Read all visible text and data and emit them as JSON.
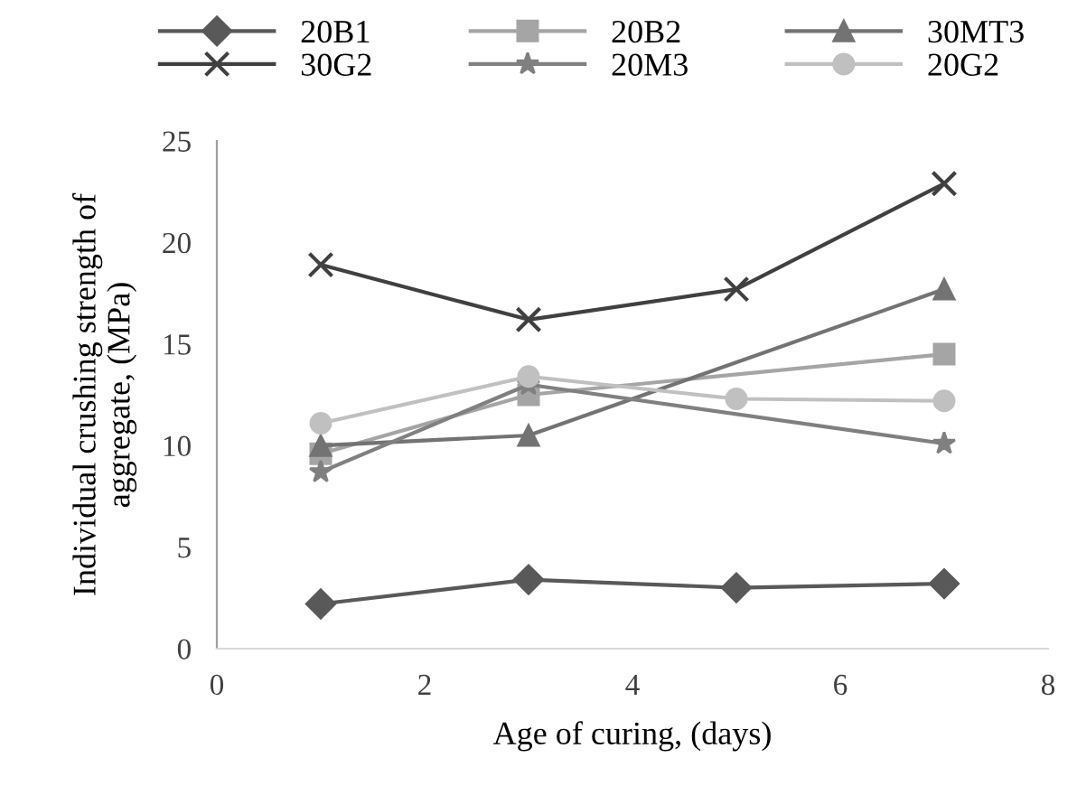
{
  "chart_data": {
    "type": "line",
    "xlabel": "Age of curing, (days)",
    "ylabel": "Individual crushing strength of\naggregate, (MPa)",
    "xlim": [
      0,
      8
    ],
    "xticks": [
      0,
      2,
      4,
      6,
      8
    ],
    "ylim": [
      0,
      25
    ],
    "yticks": [
      0,
      5,
      10,
      15,
      20,
      25
    ],
    "grid": false,
    "legend": "top",
    "series": [
      {
        "name": "20B1",
        "color": "#595959",
        "marker": "diamond",
        "x": [
          1,
          3,
          5,
          7
        ],
        "values": [
          2.2,
          3.4,
          3.0,
          3.2
        ]
      },
      {
        "name": "20B2",
        "color": "#a5a5a5",
        "marker": "square",
        "x": [
          1,
          3,
          7
        ],
        "values": [
          9.6,
          12.5,
          14.5
        ]
      },
      {
        "name": "30MT3",
        "color": "#737373",
        "marker": "triangle",
        "x": [
          1,
          3,
          7
        ],
        "values": [
          10.0,
          10.5,
          17.7
        ]
      },
      {
        "name": "30G2",
        "color": "#404040",
        "marker": "cross",
        "x": [
          1,
          3,
          5,
          7
        ],
        "values": [
          18.9,
          16.2,
          17.7,
          22.9
        ]
      },
      {
        "name": "20M3",
        "color": "#808080",
        "marker": "star",
        "x": [
          1,
          3,
          7
        ],
        "values": [
          8.7,
          13.0,
          10.1
        ]
      },
      {
        "name": "20G2",
        "color": "#c0c0c0",
        "marker": "circle",
        "x": [
          1,
          3,
          5,
          7
        ],
        "values": [
          11.1,
          13.4,
          12.3,
          12.2
        ]
      }
    ]
  }
}
